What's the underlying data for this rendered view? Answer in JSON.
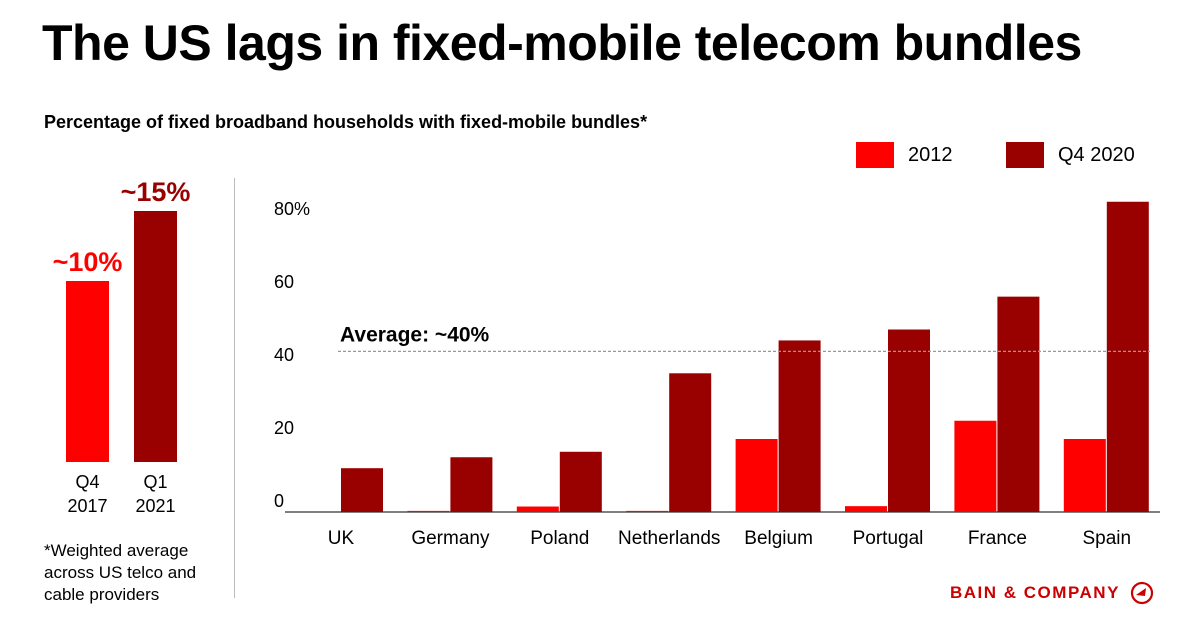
{
  "title": "The US lags in fixed-mobile telecom bundles",
  "footnote": "*Weighted average across US telco and cable providers",
  "logo_text": "BAIN & COMPANY",
  "colors": {
    "series_2012": "#ff0000",
    "series_2020": "#990000",
    "us_2017": "#ff0000",
    "us_2021": "#990000",
    "brand": "#cc0000"
  },
  "chart_data": [
    {
      "type": "bar",
      "categories": [
        "Q4 2017",
        "Q1 2021"
      ],
      "category_lines": [
        [
          "Q4",
          "2017"
        ],
        [
          "Q1",
          "2021"
        ]
      ],
      "values": [
        10,
        15
      ],
      "data_labels": [
        "~10%",
        "~15%"
      ],
      "title": "",
      "xlabel": "",
      "ylabel": ""
    },
    {
      "type": "bar",
      "title": "Percentage of fixed broadband households with fixed-mobile bundles*",
      "categories": [
        "UK",
        "Germany",
        "Poland",
        "Netherlands",
        "Belgium",
        "Portugal",
        "France",
        "Spain"
      ],
      "series": [
        {
          "name": "2012",
          "values": [
            0,
            0.3,
            1.5,
            0.3,
            20,
            1.6,
            25,
            20
          ]
        },
        {
          "name": "Q4 2020",
          "values": [
            12,
            15,
            16.5,
            38,
            47,
            50,
            59,
            85
          ]
        }
      ],
      "yticks": [
        0,
        20,
        40,
        60,
        80
      ],
      "ytick_labels": [
        "0",
        "20",
        "40",
        "60",
        "80%"
      ],
      "ylim": [
        0,
        85
      ],
      "grid": false,
      "legend": "top-right",
      "reference_line": {
        "value": 44,
        "label": "Average: ~40%"
      },
      "xlabel": "",
      "ylabel": ""
    }
  ]
}
